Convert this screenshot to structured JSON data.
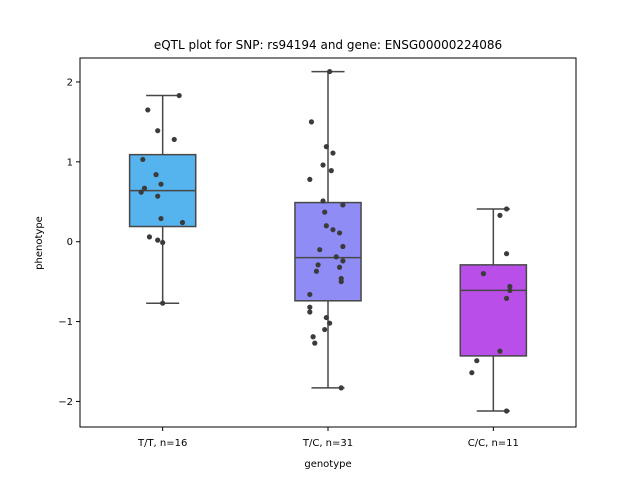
{
  "chart_data": {
    "type": "box",
    "title": "eQTL plot for SNP: rs94194 and gene: ENSG00000224086",
    "xlabel": "genotype",
    "ylabel": "phenotype",
    "ylim": [
      -2.32,
      2.3
    ],
    "yticks": [
      -2,
      -1,
      0,
      1,
      2
    ],
    "yticklabels": [
      "−2",
      "−1",
      "0",
      "1",
      "2"
    ],
    "grid": false,
    "groups": [
      {
        "label": "T/T, n=16",
        "color": "#55b3ee",
        "box": {
          "whislo": -0.77,
          "q1": 0.19,
          "median": 0.64,
          "q3": 1.09,
          "whishi": 1.83
        },
        "points": [
          {
            "dx": 0.1,
            "y": 1.83
          },
          {
            "dx": -0.09,
            "y": 1.65
          },
          {
            "dx": -0.03,
            "y": 1.39
          },
          {
            "dx": 0.07,
            "y": 1.28
          },
          {
            "dx": -0.12,
            "y": 1.03
          },
          {
            "dx": -0.04,
            "y": 0.84
          },
          {
            "dx": -0.01,
            "y": 0.72
          },
          {
            "dx": -0.11,
            "y": 0.67
          },
          {
            "dx": -0.13,
            "y": 0.62
          },
          {
            "dx": -0.03,
            "y": 0.57
          },
          {
            "dx": -0.01,
            "y": 0.29
          },
          {
            "dx": 0.12,
            "y": 0.24
          },
          {
            "dx": -0.08,
            "y": 0.06
          },
          {
            "dx": -0.03,
            "y": 0.02
          },
          {
            "dx": 0.0,
            "y": -0.01
          },
          {
            "dx": 0.0,
            "y": -0.77
          }
        ]
      },
      {
        "label": "T/C, n=31",
        "color": "#8f8df5",
        "box": {
          "whislo": -1.83,
          "q1": -0.74,
          "median": -0.2,
          "q3": 0.49,
          "whishi": 2.13
        },
        "points": [
          {
            "dx": 0.01,
            "y": 2.13
          },
          {
            "dx": -0.1,
            "y": 1.5
          },
          {
            "dx": -0.01,
            "y": 1.19
          },
          {
            "dx": 0.03,
            "y": 1.11
          },
          {
            "dx": -0.03,
            "y": 0.96
          },
          {
            "dx": 0.02,
            "y": 0.89
          },
          {
            "dx": -0.11,
            "y": 0.78
          },
          {
            "dx": -0.03,
            "y": 0.51
          },
          {
            "dx": 0.09,
            "y": 0.46
          },
          {
            "dx": -0.02,
            "y": 0.37
          },
          {
            "dx": -0.01,
            "y": 0.2
          },
          {
            "dx": 0.03,
            "y": 0.15
          },
          {
            "dx": 0.07,
            "y": 0.11
          },
          {
            "dx": 0.09,
            "y": -0.06
          },
          {
            "dx": -0.05,
            "y": -0.1
          },
          {
            "dx": 0.05,
            "y": -0.19
          },
          {
            "dx": 0.09,
            "y": -0.24
          },
          {
            "dx": -0.06,
            "y": -0.29
          },
          {
            "dx": 0.07,
            "y": -0.32
          },
          {
            "dx": -0.07,
            "y": -0.37
          },
          {
            "dx": 0.08,
            "y": -0.46
          },
          {
            "dx": 0.08,
            "y": -0.5
          },
          {
            "dx": -0.11,
            "y": -0.66
          },
          {
            "dx": -0.11,
            "y": -0.82
          },
          {
            "dx": -0.11,
            "y": -0.88
          },
          {
            "dx": -0.01,
            "y": -0.95
          },
          {
            "dx": 0.01,
            "y": -1.02
          },
          {
            "dx": -0.02,
            "y": -1.1
          },
          {
            "dx": -0.09,
            "y": -1.19
          },
          {
            "dx": -0.08,
            "y": -1.27
          },
          {
            "dx": 0.08,
            "y": -1.83
          }
        ]
      },
      {
        "label": "C/C, n=11",
        "color": "#ba4ee8",
        "box": {
          "whislo": -2.12,
          "q1": -1.43,
          "median": -0.61,
          "q3": -0.29,
          "whishi": 0.41
        },
        "points": [
          {
            "dx": 0.08,
            "y": 0.41
          },
          {
            "dx": 0.04,
            "y": 0.33
          },
          {
            "dx": 0.08,
            "y": -0.15
          },
          {
            "dx": -0.06,
            "y": -0.4
          },
          {
            "dx": 0.1,
            "y": -0.56
          },
          {
            "dx": 0.1,
            "y": -0.61
          },
          {
            "dx": 0.08,
            "y": -0.71
          },
          {
            "dx": 0.04,
            "y": -1.37
          },
          {
            "dx": -0.1,
            "y": -1.49
          },
          {
            "dx": -0.13,
            "y": -1.64
          },
          {
            "dx": 0.08,
            "y": -2.12
          }
        ]
      }
    ]
  }
}
